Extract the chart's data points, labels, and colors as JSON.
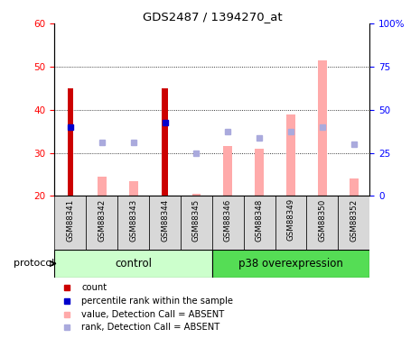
{
  "title": "GDS2487 / 1394270_at",
  "samples": [
    "GSM88341",
    "GSM88342",
    "GSM88343",
    "GSM88344",
    "GSM88345",
    "GSM88346",
    "GSM88348",
    "GSM88349",
    "GSM88350",
    "GSM88352"
  ],
  "count_values": [
    45,
    null,
    null,
    45,
    null,
    null,
    null,
    null,
    null,
    null
  ],
  "percentile_rank": [
    36,
    null,
    null,
    37,
    null,
    null,
    null,
    null,
    null,
    null
  ],
  "value_absent": [
    null,
    24.5,
    23.5,
    null,
    20.5,
    31.5,
    31.0,
    39.0,
    51.5,
    24.0
  ],
  "rank_absent": [
    null,
    32.5,
    32.5,
    null,
    30.0,
    35.0,
    33.5,
    35.0,
    36.0,
    32.0
  ],
  "ylim": [
    20,
    60
  ],
  "yticks": [
    20,
    30,
    40,
    50,
    60
  ],
  "right_ylim": [
    0,
    100
  ],
  "right_yticks": [
    0,
    25,
    50,
    75,
    100
  ],
  "right_yticklabels": [
    "0",
    "25",
    "50",
    "75",
    "100%"
  ],
  "groups": {
    "control": [
      0,
      1,
      2,
      3,
      4
    ],
    "p38 overexpression": [
      5,
      6,
      7,
      8,
      9
    ]
  },
  "group_colors": {
    "control": "#ccffcc",
    "p38 overexpression": "#55dd55"
  },
  "colors": {
    "count": "#cc0000",
    "percentile_rank": "#0000cc",
    "value_absent": "#ffaaaa",
    "rank_absent": "#aaaadd"
  },
  "protocol_label": "protocol",
  "count_bar_width": 0.18,
  "absent_bar_width": 0.28
}
